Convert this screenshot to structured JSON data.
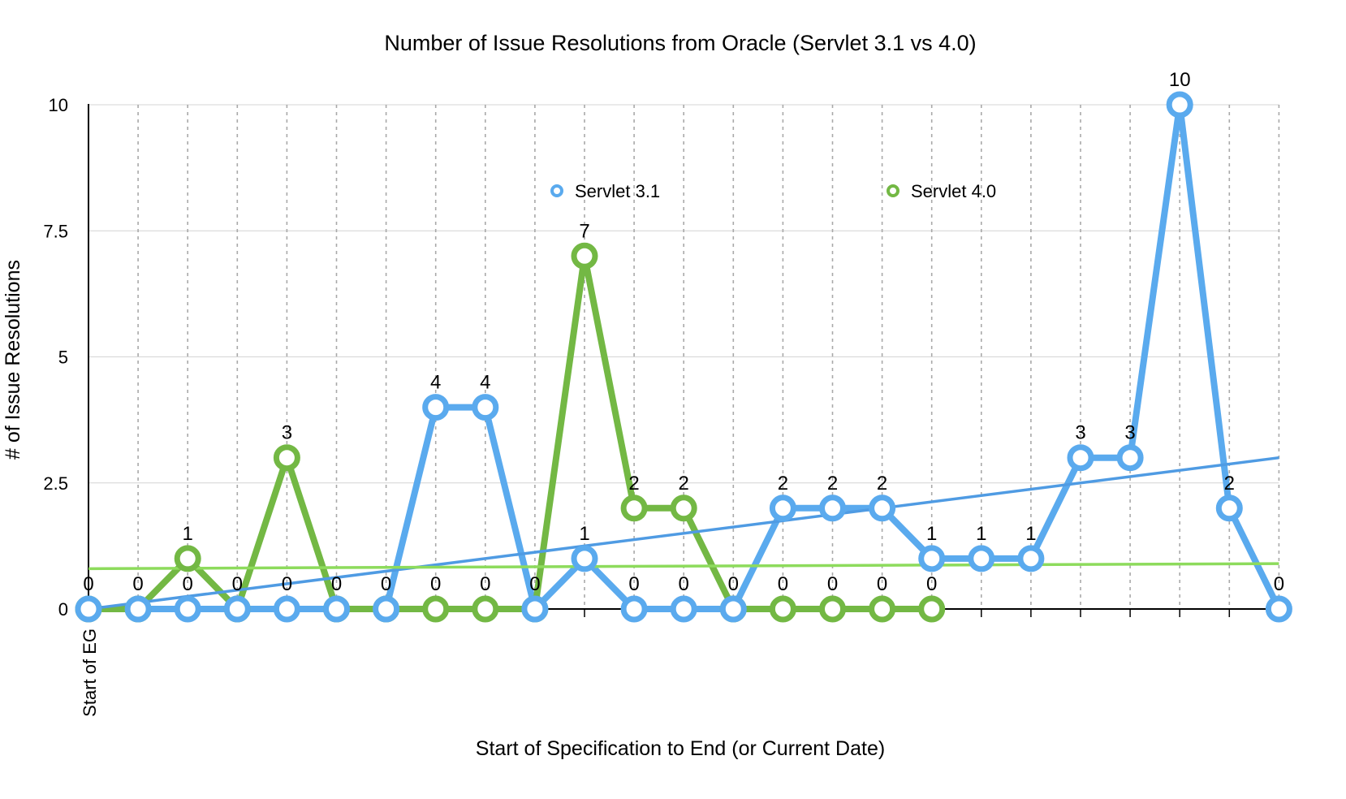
{
  "chart_data": {
    "type": "line",
    "title": "Number of Issue Resolutions from Oracle (Servlet 3.1 vs 4.0)",
    "xlabel": "Start of Specification to End (or Current Date)",
    "ylabel": "# of Issue Resolutions",
    "ylim": [
      0,
      10
    ],
    "yticks": [
      "0",
      "2.5",
      "5",
      "7.5",
      "10"
    ],
    "ytick_values": [
      0,
      2.5,
      5,
      7.5,
      10
    ],
    "x_tick_label": "Start of EG",
    "grid": true,
    "legend_placement": "top-center",
    "colors": {
      "servlet31": "#5aaaee",
      "servlet40": "#73b844",
      "trend31": "#4f9be3",
      "trend40": "#8ddb5c"
    },
    "series": [
      {
        "name": "Servlet 3.1",
        "values": [
          0,
          0,
          0,
          0,
          0,
          0,
          0,
          4,
          4,
          0,
          1,
          0,
          0,
          0,
          2,
          2,
          2,
          1,
          1,
          1,
          3,
          3,
          10,
          2,
          0
        ],
        "labels": [
          "0",
          "0",
          "0",
          "0",
          "0",
          "0",
          "0",
          "4",
          "4",
          "0",
          "1",
          "0",
          "0",
          "0",
          "2",
          "2",
          "2",
          "1",
          "1",
          "1",
          "3",
          "3",
          "10",
          "2",
          "0"
        ]
      },
      {
        "name": "Servlet 4.0",
        "values": [
          0,
          0,
          1,
          0,
          3,
          0,
          0,
          0,
          0,
          0,
          7,
          2,
          2,
          0,
          0,
          0,
          0,
          0
        ],
        "labels": [
          "0",
          "0",
          "1",
          "0",
          "3",
          "0",
          "0",
          "0",
          "0",
          "0",
          "7",
          "2",
          "2",
          "0",
          "0",
          "0",
          "0",
          "0"
        ]
      }
    ],
    "trendlines": [
      {
        "series": "Servlet 3.1",
        "start": 0,
        "end": 3.0
      },
      {
        "series": "Servlet 4.0",
        "start": 0.8,
        "end": 0.9
      }
    ]
  }
}
